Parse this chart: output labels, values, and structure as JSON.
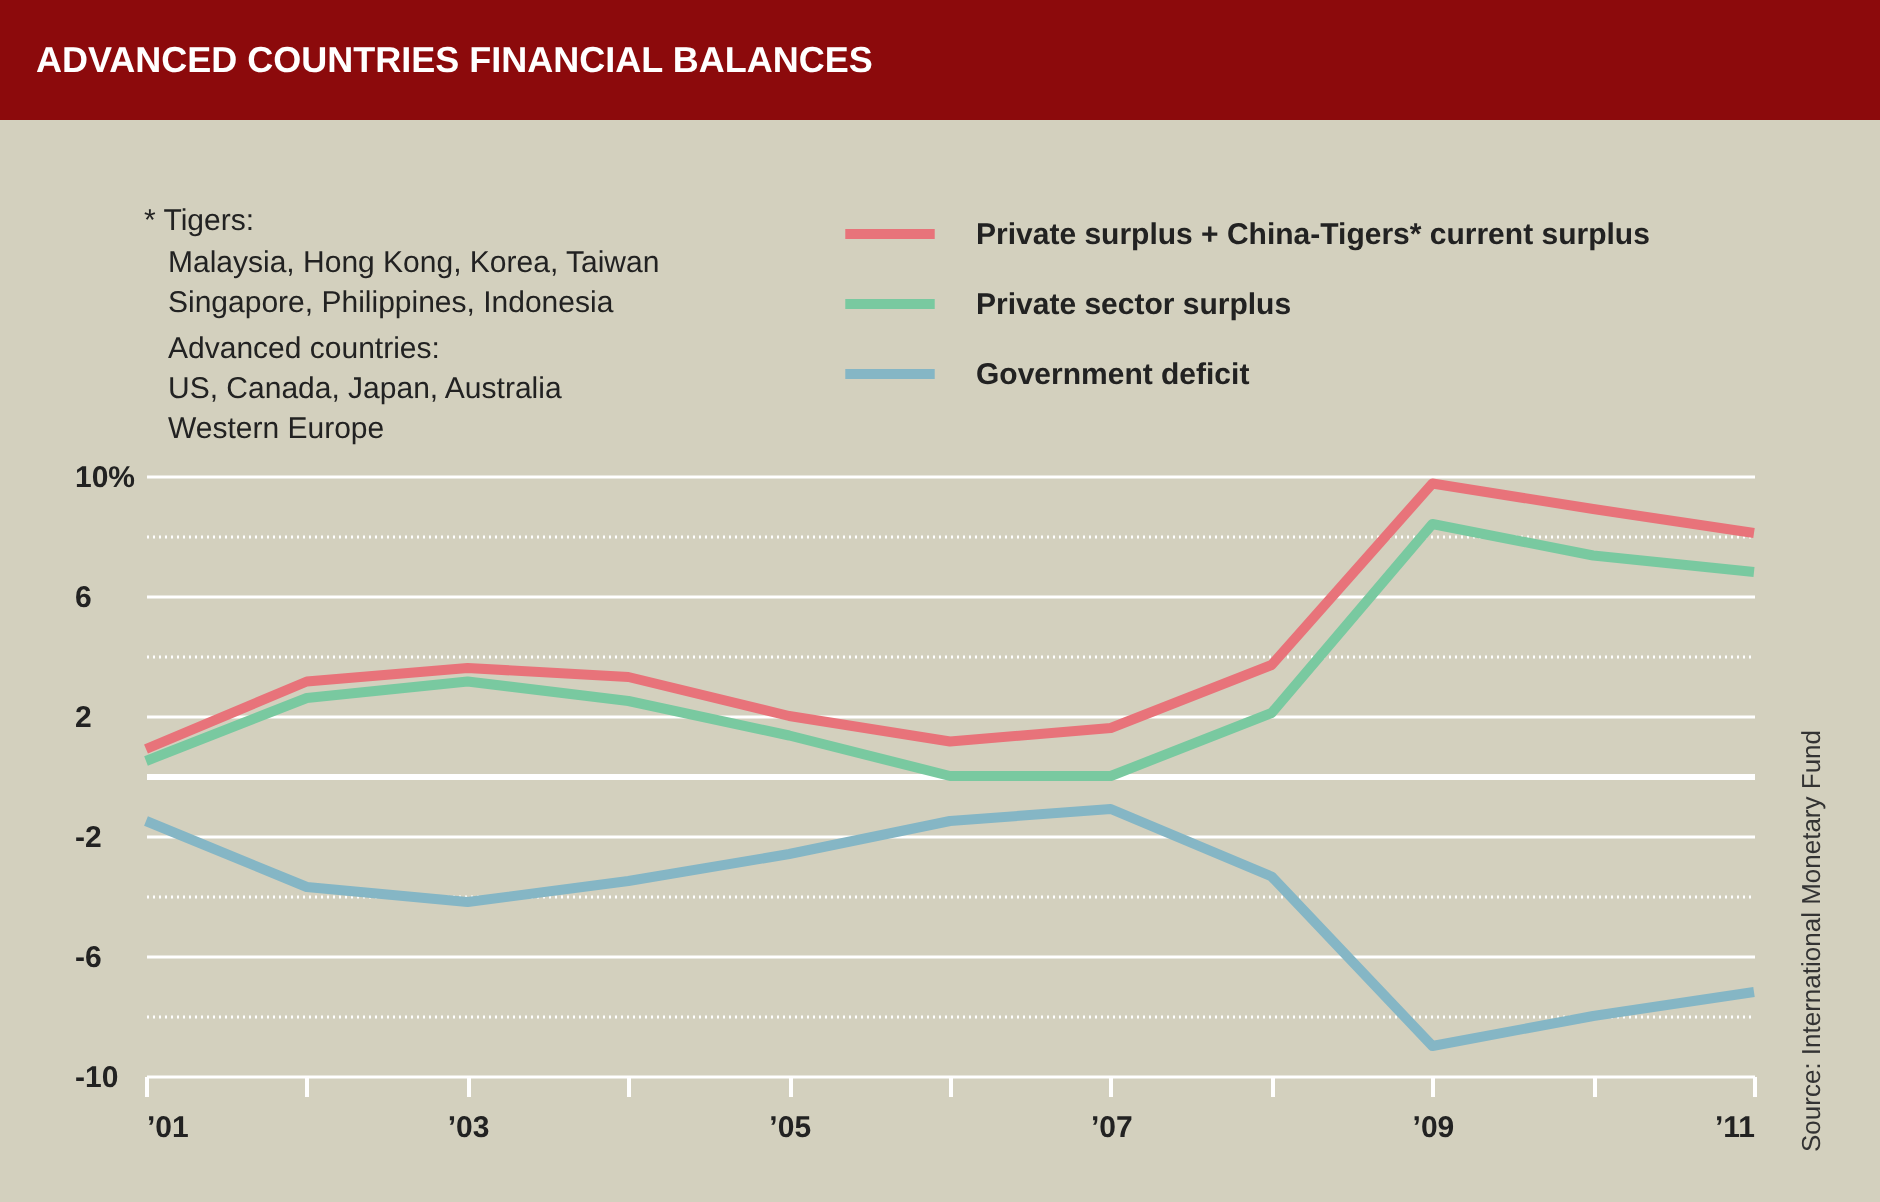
{
  "chart_data": {
    "type": "line",
    "title": "ADVANCED COUNTRIES FINANCIAL BALANCES",
    "annotations": [
      "* Tigers:",
      "Malaysia, Hong Kong, Korea, Taiwan",
      "Singapore, Philippines, Indonesia",
      "Advanced countries:",
      "US, Canada, Japan, Australia",
      "Western Europe",
      "Source: International Monetary Fund"
    ],
    "x": [
      2001,
      2002,
      2003,
      2004,
      2005,
      2006,
      2007,
      2008,
      2009,
      2010,
      2011
    ],
    "series": [
      {
        "name": "Private surplus + China-Tigers* current surplus",
        "color": "#e8737a",
        "values": [
          0.9,
          3.15,
          3.6,
          3.3,
          2.0,
          1.15,
          1.6,
          3.7,
          9.75,
          8.9,
          8.1
        ]
      },
      {
        "name": "Private sector surplus",
        "color": "#79c9a0",
        "values": [
          0.5,
          2.6,
          3.15,
          2.5,
          1.35,
          0,
          0,
          2.1,
          8.4,
          7.35,
          6.8
        ]
      },
      {
        "name": "Government deficit",
        "color": "#85b6c5",
        "values": [
          -1.5,
          -3.7,
          -4.2,
          -3.5,
          -2.6,
          -1.5,
          -1.1,
          -3.35,
          -9.0,
          -8.0,
          -7.2
        ]
      }
    ],
    "xlim": [
      2001,
      2011
    ],
    "xticks": [
      {
        "value": 2001,
        "label": "’01"
      },
      {
        "value": 2002,
        "label": null
      },
      {
        "value": 2003,
        "label": "’03"
      },
      {
        "value": 2004,
        "label": null
      },
      {
        "value": 2005,
        "label": "’05"
      },
      {
        "value": 2006,
        "label": null
      },
      {
        "value": 2007,
        "label": "’07"
      },
      {
        "value": 2008,
        "label": null
      },
      {
        "value": 2009,
        "label": "’09"
      },
      {
        "value": 2010,
        "label": null
      },
      {
        "value": 2011,
        "label": "’11"
      }
    ],
    "ylim": [
      -10,
      10
    ],
    "yticks": [
      {
        "value": 10,
        "label": "10%"
      },
      {
        "value": 8,
        "label": null
      },
      6,
      {
        "value": 4,
        "label": null
      },
      2,
      -2,
      {
        "value": -4,
        "label": null
      },
      -6,
      {
        "value": -8,
        "label": null
      },
      -10
    ],
    "ref_lines": [
      {
        "axis": "y",
        "value": 0
      }
    ],
    "grid": "y",
    "legend": "top right",
    "marker": "none",
    "line_style": "solid"
  }
}
